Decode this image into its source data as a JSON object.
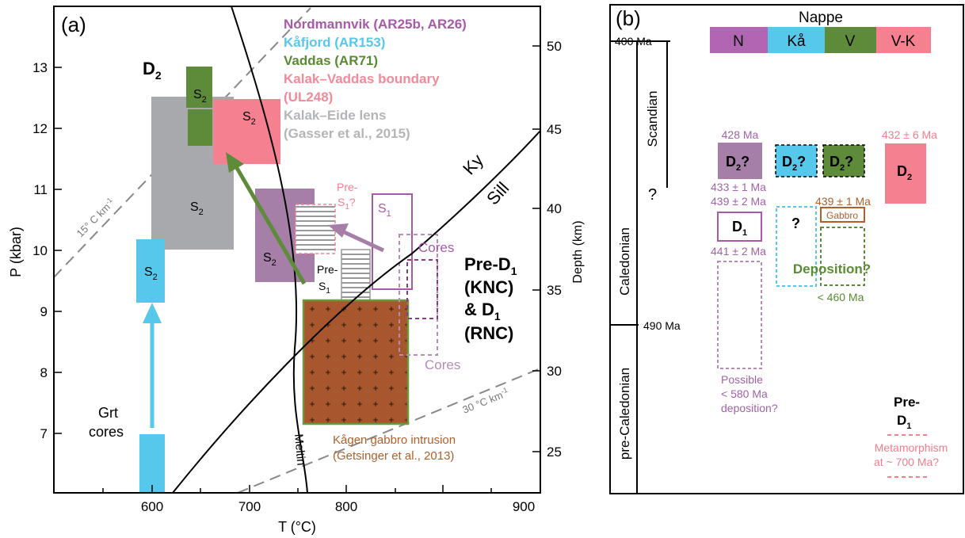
{
  "colors": {
    "nordmannvik": "#a57fa8",
    "kafjord": "#56c8eb",
    "vaddas": "#5e8b39",
    "boundary": "#f48090",
    "kalak_eide": "#a8a9ad",
    "gabbro": "#a8562d",
    "gabbro_edge": "#6a9a3a",
    "n_box": "#b165b2",
    "legend_n": "#a65aa9",
    "legend_vaddas": "#5a8a33",
    "legend_kb": "#f28a9a",
    "legend_gray": "#b4b5b7",
    "gabbro_text": "#b0602b",
    "purple_text": "#a162a6",
    "pink_text": "#f07e8e",
    "green_text": "#5a8a33"
  },
  "panel_a": {
    "label": "(a)",
    "xlabel": "T (°C)",
    "ylabel": "P (kbar)",
    "y2label": "Depth (km)",
    "xticks": [
      "600",
      "700",
      "800",
      "900"
    ],
    "yticks": [
      "7",
      "8",
      "9",
      "10",
      "11",
      "12",
      "13"
    ],
    "y2ticks": [
      "25",
      "30",
      "35",
      "40",
      "45",
      "50"
    ],
    "legend": [
      {
        "text": "Nordmannvik (AR25b, AR26)",
        "color": "#a65aa9"
      },
      {
        "text": "Kåfjord (AR153)",
        "color": "#56c8eb"
      },
      {
        "text": "Vaddas (AR71)",
        "color": "#5a8a33"
      },
      {
        "text": "Kalak–Vaddas boundary",
        "color": "#f28a9a"
      },
      {
        "text": "(UL248)",
        "color": "#f28a9a"
      },
      {
        "text": "Kalak–Eide lens",
        "color": "#b4b5b7"
      },
      {
        "text": "(Gasser et al., 2015)",
        "color": "#b4b5b7"
      }
    ],
    "d2": "D",
    "d2_sub": "2",
    "s": "S",
    "s2_sub": "2",
    "s1_sub": "1",
    "pre_s1_a": "Pre-",
    "pre_s1_b": "S",
    "pre_s1_q": "?",
    "pre_s1b_a": "Pre-",
    "cores": "Cores",
    "pre_d1_line1": "Pre-D",
    "pre_d1_sub": "1",
    "pre_d1_line2": "(KNC)",
    "pre_d1_line3": "& D",
    "pre_d1_line4": "(RNC)",
    "ky": "Ky",
    "sill": "Sill",
    "melt": "Meltin",
    "grt1": "Grt",
    "grt2": "cores",
    "grad15": "15° C km",
    "grad30": "30 °C km",
    "grad_exp": "-1",
    "gabbro1": "Kågen gabbro intrusion",
    "gabbro2": "(Getsinger et al., 2013)"
  },
  "panel_b": {
    "label": "(b)",
    "nappe_title": "Nappe",
    "nappes": [
      {
        "label": "N",
        "color": "#b165b2"
      },
      {
        "label": "Kå",
        "color": "#56c8eb"
      },
      {
        "label": "V",
        "color": "#5e8b39"
      },
      {
        "label": "V-K",
        "color": "#f48090"
      }
    ],
    "age_400": "400 Ma",
    "age_490": "490 Ma",
    "scandian": "Scandian",
    "caledonian": "Caledonian",
    "pre_caledonian": "pre-Caledonian",
    "q": "?",
    "age_428": "428 Ma",
    "age_432": "432 ± 6 Ma",
    "age_433": "433 ± 1 Ma",
    "age_439a": "439 ± 2 Ma",
    "age_439b": "439 ± 1 Ma",
    "age_441": "441 ± 2 Ma",
    "age_460": "< 460 Ma",
    "d2q": "D",
    "d2q_sub": "2",
    "d2q_q": "?",
    "d1": "D",
    "d1_sub": "1",
    "gabbro": "Gabbro",
    "deposition": "Deposition?",
    "possible1": "Possible",
    "possible2": "< 580 Ma",
    "possible3": "deposition?",
    "pre_d1_a": "Pre-",
    "pre_d1_b": "D",
    "meta1": "Metamorphism",
    "meta2": "at ~ 700 Ma?"
  }
}
